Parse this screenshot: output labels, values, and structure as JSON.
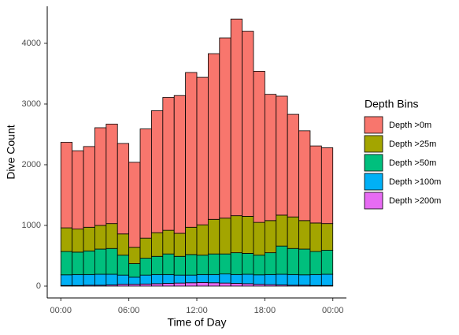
{
  "chart_data": {
    "type": "stacked_histogram",
    "x_label": "Time of Day",
    "y_label": "Dive Count",
    "legend_title": "Depth Bins",
    "legend_position": "right",
    "bins": [
      0,
      1,
      2,
      3,
      4,
      5,
      6,
      7,
      8,
      9,
      10,
      11,
      12,
      13,
      14,
      15,
      16,
      17,
      18,
      19,
      20,
      21,
      22,
      23,
      24
    ],
    "series": [
      {
        "name": "Depth >0m",
        "color": "#F8766D",
        "values": [
          1410,
          1290,
          1330,
          1610,
          1640,
          1490,
          1400,
          1800,
          2010,
          2190,
          2270,
          2550,
          2430,
          2730,
          2970,
          3240,
          3050,
          2490,
          2080,
          1960,
          1690,
          1480,
          1270,
          1250
        ]
      },
      {
        "name": "Depth >25m",
        "color": "#A3A500",
        "values": [
          390,
          380,
          390,
          390,
          410,
          350,
          270,
          330,
          390,
          390,
          380,
          450,
          500,
          570,
          590,
          610,
          610,
          540,
          530,
          510,
          520,
          470,
          470,
          440
        ]
      },
      {
        "name": "Depth >50m",
        "color": "#00BF7D",
        "values": [
          385,
          370,
          390,
          415,
          425,
          330,
          220,
          280,
          300,
          340,
          310,
          340,
          320,
          340,
          330,
          360,
          345,
          325,
          360,
          465,
          430,
          425,
          380,
          395
        ]
      },
      {
        "name": "Depth >100m",
        "color": "#00B0F6",
        "values": [
          175,
          180,
          175,
          180,
          175,
          150,
          120,
          145,
          150,
          145,
          130,
          125,
          130,
          135,
          150,
          145,
          155,
          155,
          165,
          175,
          175,
          170,
          180,
          185
        ]
      },
      {
        "name": "Depth >200m",
        "color": "#E76BF3",
        "values": [
          10,
          10,
          15,
          15,
          20,
          30,
          30,
          35,
          40,
          45,
          50,
          55,
          60,
          55,
          50,
          45,
          40,
          30,
          25,
          20,
          15,
          15,
          10,
          10
        ]
      }
    ],
    "xlim": [
      -1.2,
      25.2
    ],
    "xticks": [
      {
        "value": 0,
        "label": "00:00"
      },
      {
        "value": 6,
        "label": "06:00"
      },
      {
        "value": 12,
        "label": "12:00"
      },
      {
        "value": 18,
        "label": "18:00"
      },
      {
        "value": 24,
        "label": "00:00"
      }
    ],
    "ylim": [
      -195,
      4610
    ],
    "yticks": [
      0,
      1000,
      2000,
      3000,
      4000
    ],
    "grid": false
  }
}
